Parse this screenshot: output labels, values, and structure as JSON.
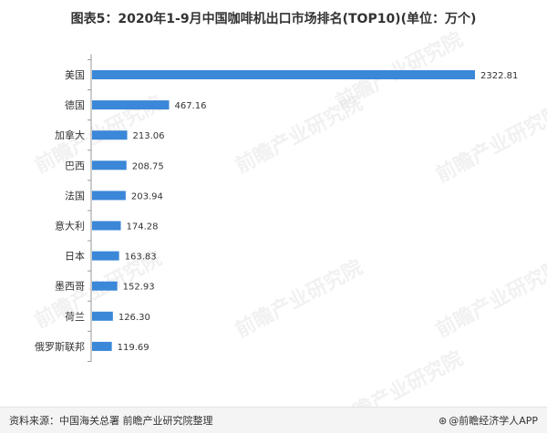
{
  "title": "图表5：2020年1-9月中国咖啡机出口市场排名(TOP10)(单位：万个)",
  "footer": {
    "source": "资料来源：中国海关总署 前瞻产业研究院整理",
    "brand_logo": "⊛",
    "brand": "@前瞻经济学人APP"
  },
  "watermark": "前瞻产业研究院",
  "colors": {
    "bar": "#3b87d8",
    "axis": "#9a9a9a",
    "text": "#333333"
  },
  "chart_data": {
    "type": "bar",
    "orientation": "horizontal",
    "title": "图表5：2020年1-9月中国咖啡机出口市场排名(TOP10)(单位：万个)",
    "categories": [
      "美国",
      "德国",
      "加拿大",
      "巴西",
      "法国",
      "意大利",
      "日本",
      "墨西哥",
      "荷兰",
      "俄罗斯联邦"
    ],
    "values": [
      2322.81,
      467.16,
      213.06,
      208.75,
      203.94,
      174.28,
      163.83,
      152.93,
      126.3,
      119.69
    ],
    "labels": [
      "2322.81",
      "467.16",
      "213.06",
      "208.75",
      "203.94",
      "174.28",
      "163.83",
      "152.93",
      "126.30",
      "119.69"
    ],
    "xlim": [
      0,
      2322.81
    ],
    "grid": false,
    "legend": false
  }
}
